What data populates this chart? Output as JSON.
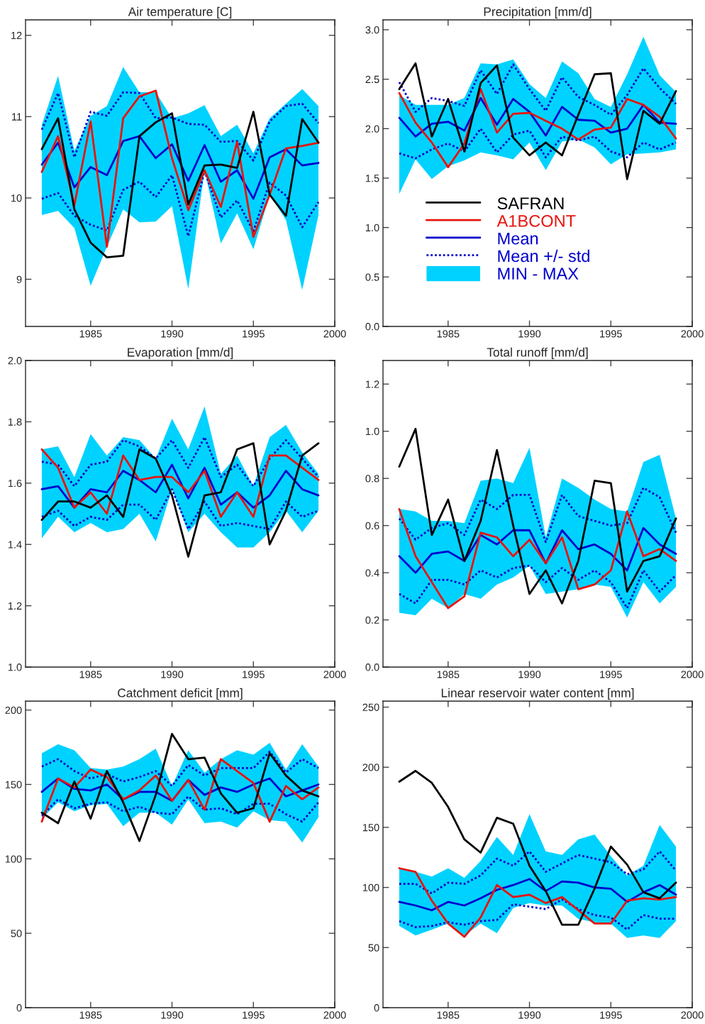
{
  "chart_data": [
    {
      "type": "line",
      "title": "Air temperature [C]",
      "x": [
        1982,
        1983,
        1984,
        1985,
        1986,
        1987,
        1988,
        1989,
        1990,
        1991,
        1992,
        1993,
        1994,
        1995,
        1996,
        1997,
        1998,
        1999
      ],
      "xlim": [
        1981,
        2000
      ],
      "xticks": [
        1985,
        1990,
        1995,
        2000
      ],
      "ylim": [
        8.42,
        12.19
      ],
      "yticks": [
        9,
        10,
        11,
        12
      ],
      "series": [
        {
          "color": "#000000",
          "line_style": "solid",
          "values": [
            10.6,
            10.98,
            9.86,
            9.45,
            9.27,
            9.29,
            10.76,
            10.93,
            11.04,
            9.92,
            10.4,
            10.41,
            10.37,
            11.06,
            10.04,
            9.78,
            10.97,
            10.68
          ]
        },
        {
          "color": "#e8140c",
          "line_style": "solid",
          "values": [
            10.32,
            10.76,
            9.91,
            10.94,
            9.4,
            10.98,
            11.25,
            11.32,
            10.49,
            9.85,
            10.34,
            9.89,
            10.69,
            9.52,
            10.04,
            10.61,
            10.64,
            10.68
          ]
        },
        {
          "color": "#0000cc",
          "line_style": "solid",
          "values": [
            10.41,
            10.68,
            10.13,
            10.38,
            10.28,
            10.7,
            10.76,
            10.49,
            10.66,
            10.21,
            10.65,
            10.2,
            10.34,
            9.99,
            10.5,
            10.6,
            10.4,
            10.43
          ],
          "lower": [
            9.79,
            9.84,
            9.63,
            8.92,
            9.4,
            9.86,
            9.7,
            9.71,
            9.9,
            8.88,
            10.34,
            9.44,
            9.81,
            9.37,
            10.04,
            9.73,
            8.87,
            9.79
          ],
          "upper": [
            10.9,
            11.5,
            10.58,
            11.01,
            11.13,
            11.61,
            11.3,
            11.3,
            10.98,
            11.04,
            11.14,
            10.76,
            10.9,
            10.55,
            10.98,
            11.16,
            11.34,
            11.13
          ]
        },
        {
          "color": "#0000cc",
          "line_style": "dotted",
          "values": [
            10.84,
            11.29,
            10.5,
            11.06,
            11.01,
            11.3,
            11.29,
            10.98,
            10.99,
            10.91,
            10.9,
            10.69,
            10.7,
            10.46,
            10.94,
            11.13,
            11.16,
            10.92
          ]
        },
        {
          "color": "#0000cc",
          "line_style": "dotted",
          "values": [
            9.99,
            10.06,
            9.78,
            9.67,
            9.6,
            10.1,
            10.2,
            10.01,
            10.28,
            9.53,
            10.33,
            9.76,
            9.97,
            9.59,
            10.19,
            10.03,
            9.64,
            9.95
          ]
        }
      ]
    },
    {
      "type": "line",
      "title": "Precipitation [mm/d]",
      "x": [
        1982,
        1983,
        1984,
        1985,
        1986,
        1987,
        1988,
        1989,
        1990,
        1991,
        1992,
        1993,
        1994,
        1995,
        1996,
        1997,
        1998,
        1999
      ],
      "xlim": [
        1981,
        2000
      ],
      "xticks": [
        1985,
        1990,
        1995,
        2000
      ],
      "ylim": [
        0,
        3.1
      ],
      "yticks": [
        {
          "value": 0,
          "label": "0.0"
        },
        {
          "value": 0.5,
          "label": "0.5"
        },
        {
          "value": 1,
          "label": "1.0"
        },
        {
          "value": 1.5,
          "label": "1.5"
        },
        {
          "value": 2,
          "label": "2.0"
        },
        {
          "value": 2.5,
          "label": "2.5"
        },
        {
          "value": 3,
          "label": "3.0"
        }
      ],
      "legend": "bottom left",
      "annotations": [
        "MIN - MAX"
      ],
      "series": [
        {
          "name": "SAFRAN",
          "color": "#000000",
          "line_style": "solid",
          "values": [
            2.4,
            2.66,
            1.92,
            2.3,
            1.77,
            2.46,
            2.64,
            1.91,
            1.73,
            1.86,
            1.73,
            2.14,
            2.55,
            2.56,
            1.49,
            2.18,
            2.05,
            2.38
          ]
        },
        {
          "name": "A1BCONT",
          "color": "#e8140c",
          "line_style": "solid",
          "values": [
            2.36,
            2.06,
            1.86,
            1.61,
            1.85,
            2.4,
            1.96,
            2.15,
            2.16,
            2.08,
            2.0,
            1.89,
            1.99,
            2.01,
            2.3,
            2.24,
            2.12,
            1.9
          ]
        },
        {
          "name": "Mean",
          "color": "#0000cc",
          "line_style": "solid",
          "values": [
            2.11,
            1.92,
            2.05,
            2.07,
            1.98,
            2.31,
            2.04,
            2.3,
            2.17,
            1.93,
            2.22,
            2.09,
            2.08,
            1.96,
            2.0,
            2.24,
            2.06,
            2.05
          ],
          "lower": [
            1.34,
            1.69,
            1.49,
            1.62,
            1.68,
            1.76,
            1.73,
            1.69,
            1.86,
            1.58,
            1.87,
            1.89,
            1.81,
            1.64,
            1.74,
            1.75,
            1.76,
            1.79
          ],
          "upper": [
            2.34,
            2.24,
            2.24,
            2.24,
            2.31,
            2.66,
            2.65,
            2.7,
            2.45,
            2.31,
            2.68,
            2.56,
            2.3,
            2.22,
            2.55,
            2.93,
            2.54,
            2.37
          ]
        },
        {
          "name": "Mean +/- std",
          "color": "#0000cc",
          "line_style": "dotted",
          "values": [
            2.47,
            2.17,
            2.31,
            2.28,
            2.23,
            2.59,
            2.35,
            2.65,
            2.4,
            2.18,
            2.52,
            2.32,
            2.24,
            2.14,
            2.34,
            2.61,
            2.41,
            2.25
          ]
        },
        {
          "color": "#0000cc",
          "line_style": "dotted",
          "values": [
            1.75,
            1.7,
            1.79,
            1.85,
            1.77,
            2.0,
            1.76,
            1.94,
            1.98,
            1.71,
            1.92,
            1.88,
            1.92,
            1.77,
            1.71,
            1.86,
            1.79,
            1.86
          ]
        }
      ]
    },
    {
      "type": "line",
      "title": "Evaporation [mm/d]",
      "x": [
        1982,
        1983,
        1984,
        1985,
        1986,
        1987,
        1988,
        1989,
        1990,
        1991,
        1992,
        1993,
        1994,
        1995,
        1996,
        1997,
        1998,
        1999
      ],
      "xlim": [
        1981,
        2000
      ],
      "xticks": [
        1985,
        1990,
        1995,
        2000
      ],
      "ylim": [
        1,
        2
      ],
      "yticks": [
        {
          "value": 1,
          "label": "1.0"
        },
        {
          "value": 1.2,
          "label": "1.2"
        },
        {
          "value": 1.4,
          "label": "1.4"
        },
        {
          "value": 1.6,
          "label": "1.6"
        },
        {
          "value": 1.8,
          "label": "1.8"
        },
        {
          "value": 2,
          "label": "2.0"
        }
      ],
      "series": [
        {
          "color": "#000000",
          "line_style": "solid",
          "values": [
            1.48,
            1.54,
            1.54,
            1.52,
            1.56,
            1.49,
            1.71,
            1.68,
            1.56,
            1.36,
            1.56,
            1.57,
            1.71,
            1.73,
            1.4,
            1.51,
            1.69,
            1.73
          ]
        },
        {
          "color": "#e8140c",
          "line_style": "solid",
          "values": [
            1.71,
            1.65,
            1.52,
            1.57,
            1.5,
            1.69,
            1.61,
            1.62,
            1.62,
            1.57,
            1.64,
            1.49,
            1.57,
            1.49,
            1.69,
            1.69,
            1.65,
            1.61
          ]
        },
        {
          "color": "#0000cc",
          "line_style": "solid",
          "values": [
            1.58,
            1.59,
            1.52,
            1.58,
            1.57,
            1.64,
            1.61,
            1.57,
            1.66,
            1.55,
            1.65,
            1.53,
            1.57,
            1.52,
            1.56,
            1.64,
            1.58,
            1.56
          ],
          "lower": [
            1.42,
            1.49,
            1.44,
            1.47,
            1.44,
            1.45,
            1.5,
            1.41,
            1.58,
            1.44,
            1.5,
            1.44,
            1.39,
            1.39,
            1.44,
            1.51,
            1.44,
            1.51
          ],
          "upper": [
            1.71,
            1.72,
            1.62,
            1.76,
            1.69,
            1.75,
            1.74,
            1.68,
            1.81,
            1.71,
            1.85,
            1.63,
            1.69,
            1.59,
            1.75,
            1.79,
            1.7,
            1.63
          ]
        },
        {
          "color": "#0000cc",
          "line_style": "dotted",
          "values": [
            1.67,
            1.66,
            1.59,
            1.66,
            1.67,
            1.74,
            1.72,
            1.68,
            1.74,
            1.65,
            1.75,
            1.62,
            1.66,
            1.59,
            1.68,
            1.74,
            1.68,
            1.62
          ]
        },
        {
          "color": "#0000cc",
          "line_style": "dotted",
          "values": [
            1.49,
            1.51,
            1.46,
            1.49,
            1.48,
            1.53,
            1.53,
            1.48,
            1.58,
            1.45,
            1.54,
            1.46,
            1.47,
            1.46,
            1.45,
            1.54,
            1.49,
            1.51
          ]
        }
      ]
    },
    {
      "type": "line",
      "title": "Total runoff [mm/d]",
      "x": [
        1982,
        1983,
        1984,
        1985,
        1986,
        1987,
        1988,
        1989,
        1990,
        1991,
        1992,
        1993,
        1994,
        1995,
        1996,
        1997,
        1998,
        1999
      ],
      "xlim": [
        1981,
        2000
      ],
      "xticks": [
        1985,
        1990,
        1995,
        2000
      ],
      "ylim": [
        0,
        1.3
      ],
      "yticks": [
        {
          "value": 0,
          "label": "0.0"
        },
        {
          "value": 0.2,
          "label": "0.2"
        },
        {
          "value": 0.4,
          "label": "0.4"
        },
        {
          "value": 0.6,
          "label": "0.6"
        },
        {
          "value": 0.8,
          "label": "0.8"
        },
        {
          "value": 1,
          "label": "1.0"
        },
        {
          "value": 1.2,
          "label": "1.2"
        }
      ],
      "series": [
        {
          "color": "#000000",
          "line_style": "solid",
          "values": [
            0.85,
            1.01,
            0.56,
            0.71,
            0.45,
            0.62,
            0.92,
            0.6,
            0.31,
            0.41,
            0.27,
            0.45,
            0.79,
            0.78,
            0.32,
            0.45,
            0.47,
            0.63
          ]
        },
        {
          "color": "#e8140c",
          "line_style": "solid",
          "values": [
            0.67,
            0.47,
            0.36,
            0.25,
            0.3,
            0.57,
            0.55,
            0.47,
            0.54,
            0.44,
            0.55,
            0.33,
            0.35,
            0.41,
            0.66,
            0.47,
            0.5,
            0.45
          ]
        },
        {
          "color": "#0000cc",
          "line_style": "solid",
          "values": [
            0.47,
            0.4,
            0.48,
            0.49,
            0.45,
            0.56,
            0.52,
            0.58,
            0.58,
            0.44,
            0.58,
            0.5,
            0.52,
            0.48,
            0.41,
            0.59,
            0.52,
            0.48
          ],
          "lower": [
            0.23,
            0.22,
            0.29,
            0.25,
            0.31,
            0.29,
            0.35,
            0.38,
            0.43,
            0.31,
            0.32,
            0.33,
            0.35,
            0.34,
            0.21,
            0.36,
            0.27,
            0.34
          ],
          "upper": [
            0.67,
            0.66,
            0.62,
            0.62,
            0.61,
            0.79,
            0.8,
            0.78,
            0.93,
            0.55,
            0.8,
            0.76,
            0.71,
            0.67,
            0.66,
            0.87,
            0.9,
            0.63
          ]
        },
        {
          "color": "#0000cc",
          "line_style": "dotted",
          "values": [
            0.63,
            0.54,
            0.59,
            0.61,
            0.56,
            0.71,
            0.67,
            0.73,
            0.73,
            0.53,
            0.73,
            0.64,
            0.62,
            0.6,
            0.61,
            0.76,
            0.72,
            0.57
          ]
        },
        {
          "color": "#0000cc",
          "line_style": "dotted",
          "values": [
            0.31,
            0.27,
            0.37,
            0.37,
            0.35,
            0.41,
            0.38,
            0.42,
            0.43,
            0.36,
            0.42,
            0.37,
            0.41,
            0.36,
            0.25,
            0.41,
            0.32,
            0.39
          ]
        }
      ]
    },
    {
      "type": "line",
      "title": "Catchment deficit [mm]",
      "x": [
        1982,
        1983,
        1984,
        1985,
        1986,
        1987,
        1988,
        1989,
        1990,
        1991,
        1992,
        1993,
        1994,
        1995,
        1996,
        1997,
        1998,
        1999
      ],
      "xlim": [
        1981,
        2000
      ],
      "xticks": [
        1985,
        1990,
        1995,
        2000
      ],
      "ylim": [
        0,
        206
      ],
      "yticks": [
        0,
        50,
        100,
        150,
        200
      ],
      "series": [
        {
          "color": "#000000",
          "line_style": "solid",
          "values": [
            131,
            124,
            152,
            127,
            159,
            138,
            112,
            143,
            184,
            167,
            168,
            144,
            131,
            134,
            171,
            156,
            146,
            142
          ]
        },
        {
          "color": "#e8140c",
          "line_style": "solid",
          "values": [
            125,
            154,
            148,
            160,
            155,
            140,
            146,
            156,
            139,
            153,
            133,
            167,
            159,
            151,
            125,
            149,
            140,
            148
          ]
        },
        {
          "color": "#0000cc",
          "line_style": "solid",
          "values": [
            145,
            154,
            147,
            146,
            150,
            140,
            145,
            145,
            139,
            153,
            143,
            148,
            145,
            150,
            154,
            142,
            146,
            150
          ],
          "lower": [
            127,
            138,
            132,
            136,
            137,
            122,
            131,
            131,
            123,
            140,
            124,
            125,
            121,
            132,
            126,
            125,
            111,
            128
          ],
          "upper": [
            171,
            177,
            173,
            161,
            160,
            162,
            167,
            174,
            149,
            173,
            158,
            167,
            173,
            170,
            178,
            160,
            177,
            162
          ]
        },
        {
          "color": "#0000cc",
          "line_style": "dotted",
          "values": [
            162,
            167,
            159,
            154,
            157,
            152,
            155,
            159,
            149,
            163,
            156,
            161,
            161,
            161,
            172,
            158,
            167,
            161
          ]
        },
        {
          "color": "#0000cc",
          "line_style": "dotted",
          "values": [
            129,
            140,
            134,
            137,
            138,
            132,
            135,
            131,
            130,
            142,
            133,
            134,
            130,
            137,
            137,
            130,
            125,
            138
          ]
        }
      ]
    },
    {
      "type": "line",
      "title": "Linear reservoir water content [mm]",
      "x": [
        1982,
        1983,
        1984,
        1985,
        1986,
        1987,
        1988,
        1989,
        1990,
        1991,
        1992,
        1993,
        1994,
        1995,
        1996,
        1997,
        1998,
        1999
      ],
      "xlim": [
        1981,
        2000
      ],
      "xticks": [
        1985,
        1990,
        1995,
        2000
      ],
      "ylim": [
        0,
        255
      ],
      "yticks": [
        0,
        50,
        100,
        150,
        200,
        250
      ],
      "series": [
        {
          "color": "#000000",
          "line_style": "solid",
          "values": [
            188,
            197,
            187,
            167,
            140,
            129,
            158,
            153,
            118,
            97,
            69,
            69,
            99,
            134,
            119,
            96,
            91,
            104
          ]
        },
        {
          "color": "#e8140c",
          "line_style": "solid",
          "values": [
            116,
            113,
            89,
            70,
            59,
            75,
            102,
            92,
            94,
            87,
            92,
            81,
            70,
            70,
            89,
            91,
            90,
            92
          ]
        },
        {
          "color": "#0000cc",
          "line_style": "solid",
          "values": [
            88,
            85,
            81,
            88,
            85,
            91,
            98,
            102,
            107,
            97,
            105,
            104,
            100,
            99,
            88,
            96,
            102,
            94
          ],
          "lower": [
            68,
            60,
            65,
            70,
            60,
            70,
            62,
            83,
            87,
            85,
            85,
            74,
            71,
            70,
            58,
            60,
            58,
            72
          ],
          "upper": [
            116,
            113,
            109,
            116,
            108,
            122,
            142,
            127,
            161,
            130,
            127,
            140,
            144,
            126,
            110,
            118,
            152,
            134
          ]
        },
        {
          "color": "#0000cc",
          "line_style": "dotted",
          "values": [
            103,
            103,
            95,
            104,
            103,
            110,
            124,
            118,
            130,
            113,
            120,
            127,
            124,
            121,
            111,
            115,
            130,
            114
          ]
        },
        {
          "color": "#0000cc",
          "line_style": "dotted",
          "values": [
            72,
            67,
            68,
            71,
            69,
            72,
            73,
            86,
            84,
            82,
            90,
            82,
            77,
            75,
            65,
            77,
            74,
            74
          ]
        }
      ]
    }
  ]
}
